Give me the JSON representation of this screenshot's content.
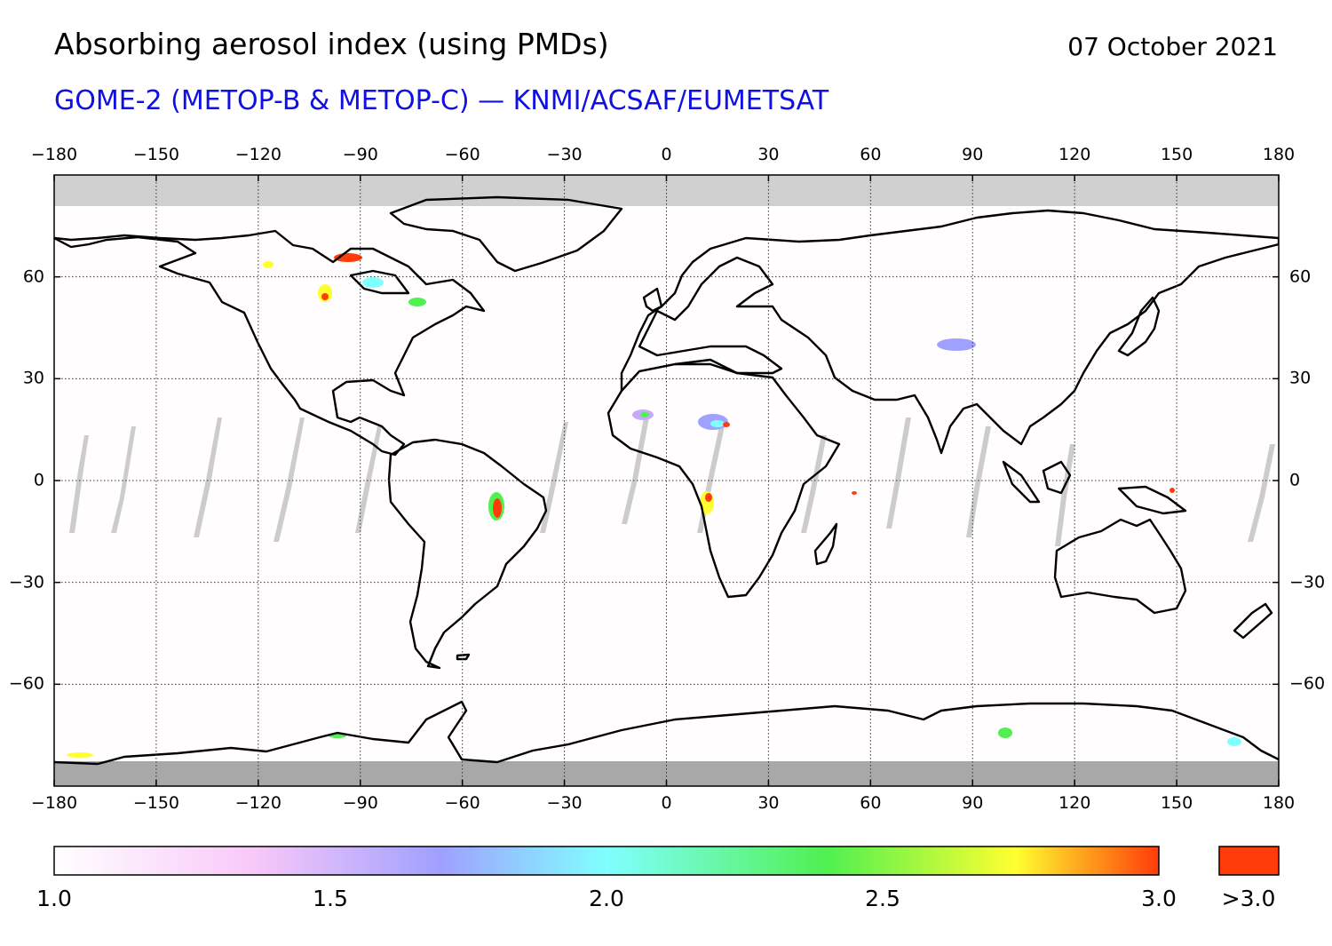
{
  "header": {
    "title": "Absorbing aerosol index (using PMDs)",
    "date": "07 October 2021",
    "subtitle": "GOME-2 (METOP-B & METOP-C) — KNMI/ACSAF/EUMETSAT"
  },
  "map": {
    "projection": "equirectangular",
    "lon_ticks": [
      "−180",
      "−150",
      "−120",
      "−90",
      "−60",
      "−30",
      "0",
      "30",
      "60",
      "90",
      "120",
      "150",
      "180"
    ],
    "lat_ticks": [
      {
        "lat": 60,
        "label": "60"
      },
      {
        "lat": 30,
        "label": "30"
      },
      {
        "lat": 0,
        "label": "0"
      },
      {
        "lat": -30,
        "label": "−30"
      },
      {
        "lat": -60,
        "label": "−60"
      }
    ],
    "lat_range": [
      -90,
      90
    ],
    "lon_range": [
      -180,
      180
    ],
    "gridlines": "dotted",
    "colors": {
      "coastline": "#000000",
      "no_data_north": "#d0d0d0",
      "no_data_south": "#a8a8a8",
      "orbit_gap": "#cccccc"
    },
    "aerosol_hotspots": [
      {
        "region": "Central Brazil",
        "lon": -50,
        "lat": -8,
        "level": 3.2
      },
      {
        "region": "Western Canada",
        "lon": -100,
        "lat": 57,
        "level": 2.8
      },
      {
        "region": "Northern Canada",
        "lon": -92,
        "lat": 66,
        "level": 3.1
      },
      {
        "region": "Sahara (Chad)",
        "lon": 14,
        "lat": 18,
        "level": 2.6
      },
      {
        "region": "West Sahara",
        "lon": -7,
        "lat": 20,
        "level": 2.3
      },
      {
        "region": "Central Africa (Angola)",
        "lon": 12,
        "lat": -7,
        "level": 3.0
      },
      {
        "region": "Taklamakan",
        "lon": 86,
        "lat": 41,
        "level": 1.8
      }
    ]
  },
  "colorbar": {
    "ticks": [
      "1.0",
      "1.5",
      "2.0",
      "2.5",
      "3.0"
    ],
    "tick_values": [
      1.0,
      1.5,
      2.0,
      2.5,
      3.0
    ],
    "range": [
      1.0,
      3.0
    ],
    "overflow_label": ">3.0",
    "overflow_color": "#ff3c0a",
    "stops": [
      "#ffffff",
      "#f8c8f8",
      "#a0a0ff",
      "#80ffff",
      "#50f050",
      "#ffff30",
      "#ff3c0a"
    ]
  }
}
